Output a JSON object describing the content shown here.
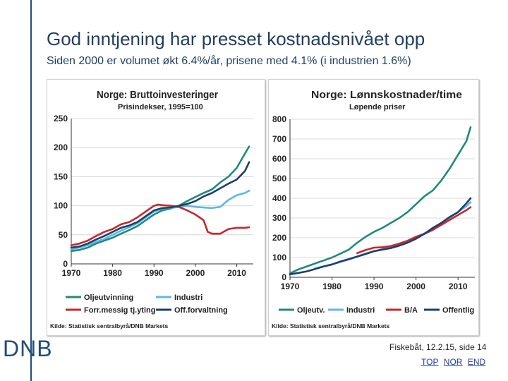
{
  "slide": {
    "title": "God inntjening har presset kostnadsnivået opp",
    "subtitle": "Siden 2000 er volumet økt 6.4%/år, prisene med 4.1% (i industrien 1.6%)",
    "logo": "DNB",
    "footer": "Fiskebåt, 12.2.15, side 14",
    "links": [
      "TOP",
      "NOR",
      "END"
    ]
  },
  "chart_data": [
    {
      "type": "line",
      "title": "Norge: Bruttoinvesteringer",
      "subtitle": "Prisindekser, 1995=100",
      "source": "Kilde: Statistisk sentralbyrå/DNB Markets",
      "xlim": [
        1970,
        2014
      ],
      "ylim": [
        0,
        250
      ],
      "xticks": [
        1970,
        1980,
        1990,
        2000,
        2010
      ],
      "yticks": [
        0,
        50,
        100,
        150,
        200,
        250
      ],
      "grid": true,
      "legend_position": "bottom",
      "legend_columns": 2,
      "series": [
        {
          "name": "Oljeutvinning",
          "color": "#1f8a7a",
          "x": [
            1970,
            1972,
            1974,
            1976,
            1978,
            1980,
            1982,
            1984,
            1986,
            1988,
            1990,
            1992,
            1994,
            1996,
            1998,
            2000,
            2002,
            2004,
            2006,
            2008,
            2010,
            2012,
            2013
          ],
          "y": [
            22,
            24,
            28,
            35,
            40,
            45,
            52,
            58,
            65,
            75,
            85,
            92,
            95,
            100,
            108,
            115,
            122,
            128,
            140,
            150,
            165,
            190,
            202
          ]
        },
        {
          "name": "Industri",
          "color": "#5bb8e8",
          "x": [
            1970,
            1972,
            1974,
            1976,
            1978,
            1980,
            1982,
            1984,
            1986,
            1988,
            1990,
            1992,
            1994,
            1996,
            1998,
            2000,
            2002,
            2004,
            2006,
            2008,
            2010,
            2012,
            2013
          ],
          "y": [
            25,
            28,
            32,
            38,
            43,
            50,
            57,
            63,
            70,
            80,
            90,
            95,
            96,
            98,
            100,
            98,
            97,
            96,
            98,
            110,
            118,
            122,
            126
          ]
        },
        {
          "name": "Forr.messig tj.yting",
          "color": "#c62828",
          "x": [
            1970,
            1972,
            1974,
            1976,
            1978,
            1980,
            1982,
            1984,
            1986,
            1988,
            1990,
            1991,
            1992,
            1994,
            1996,
            1998,
            2000,
            2002,
            2003,
            2004,
            2006,
            2008,
            2010,
            2012,
            2013
          ],
          "y": [
            32,
            35,
            40,
            48,
            55,
            60,
            68,
            72,
            80,
            90,
            100,
            102,
            101,
            100,
            98,
            92,
            85,
            75,
            55,
            52,
            52,
            60,
            62,
            62,
            63
          ]
        },
        {
          "name": "Off.forvaltning",
          "color": "#1c3f6e",
          "x": [
            1970,
            1972,
            1974,
            1976,
            1978,
            1980,
            1982,
            1984,
            1986,
            1988,
            1990,
            1992,
            1994,
            1996,
            1998,
            2000,
            2002,
            2004,
            2006,
            2008,
            2010,
            2012,
            2013
          ],
          "y": [
            28,
            30,
            35,
            42,
            48,
            55,
            62,
            66,
            72,
            82,
            92,
            96,
            97,
            100,
            103,
            108,
            116,
            122,
            130,
            138,
            145,
            160,
            175
          ]
        }
      ]
    },
    {
      "type": "line",
      "title": "Norge: Lønnskostnader/time",
      "subtitle": "Løpende priser",
      "source": "Kilde: Statistisk sentralbyrå/DNB Markets",
      "xlim": [
        1970,
        2014
      ],
      "ylim": [
        0,
        800
      ],
      "xticks": [
        1970,
        1980,
        1990,
        2000,
        2010
      ],
      "yticks": [
        0,
        100,
        200,
        300,
        400,
        500,
        600,
        700,
        800
      ],
      "grid": true,
      "legend_position": "bottom",
      "legend_columns": 4,
      "series": [
        {
          "name": "Oljeutv.",
          "color": "#1f8a7a",
          "x": [
            1970,
            1972,
            1974,
            1976,
            1978,
            1980,
            1982,
            1984,
            1986,
            1988,
            1990,
            1992,
            1994,
            1996,
            1998,
            2000,
            2002,
            2004,
            2006,
            2008,
            2010,
            2012,
            2013
          ],
          "y": [
            20,
            40,
            55,
            70,
            85,
            100,
            120,
            140,
            175,
            205,
            230,
            250,
            275,
            300,
            330,
            370,
            410,
            440,
            490,
            550,
            620,
            690,
            760
          ]
        },
        {
          "name": "Industri",
          "color": "#5bb8e8",
          "x": [
            1976,
            1978,
            1980,
            1982,
            1984,
            1986,
            1988,
            1990,
            1992,
            1994,
            1996,
            1998,
            2000,
            2002,
            2004,
            2006,
            2008,
            2010,
            2012,
            2013
          ],
          "y": [
            45,
            55,
            65,
            78,
            90,
            105,
            120,
            132,
            142,
            152,
            165,
            180,
            200,
            222,
            245,
            270,
            300,
            330,
            360,
            380
          ]
        },
        {
          "name": "B/A",
          "color": "#c62828",
          "x": [
            1986,
            1988,
            1990,
            1992,
            1994,
            1996,
            1998,
            2000,
            2002,
            2004,
            2006,
            2008,
            2010,
            2012,
            2013
          ],
          "y": [
            122,
            138,
            150,
            152,
            158,
            170,
            185,
            205,
            220,
            240,
            265,
            290,
            315,
            340,
            355
          ]
        },
        {
          "name": "Offentlig",
          "color": "#1c3f6e",
          "x": [
            1970,
            1972,
            1974,
            1976,
            1978,
            1980,
            1982,
            1984,
            1986,
            1988,
            1990,
            1992,
            1994,
            1996,
            1998,
            2000,
            2002,
            2004,
            2006,
            2008,
            2010,
            2012,
            2013
          ],
          "y": [
            15,
            22,
            30,
            42,
            55,
            65,
            80,
            92,
            105,
            118,
            132,
            140,
            148,
            160,
            175,
            195,
            220,
            250,
            275,
            305,
            330,
            375,
            400
          ]
        }
      ]
    }
  ]
}
